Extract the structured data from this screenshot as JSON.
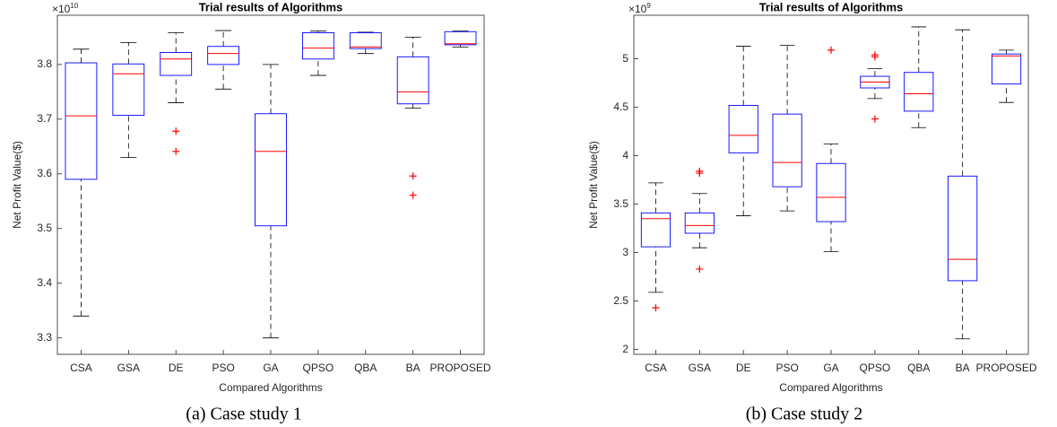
{
  "chart_data": [
    {
      "type": "box",
      "title": "Trial results of Algorithms",
      "x_label": "Compared Algorithms",
      "y_label": "Net Profit Value($)",
      "y_multiplier": "×10",
      "y_exponent": "10",
      "caption": "(a)   Case study 1",
      "categories": [
        "CSA",
        "GSA",
        "DE",
        "PSO",
        "GA",
        "QPSO",
        "QBA",
        "BA",
        "PROPOSED"
      ],
      "whisker_low": [
        3.34,
        3.63,
        3.73,
        3.755,
        3.3,
        3.78,
        3.82,
        3.72,
        3.832
      ],
      "q1": [
        3.59,
        3.707,
        3.78,
        3.8,
        3.505,
        3.81,
        3.829,
        3.728,
        3.836
      ],
      "median": [
        3.706,
        3.783,
        3.81,
        3.82,
        3.641,
        3.83,
        3.832,
        3.75,
        3.838
      ],
      "q3": [
        3.803,
        3.801,
        3.822,
        3.833,
        3.71,
        3.858,
        3.858,
        3.814,
        3.86
      ],
      "whisker_high": [
        3.828,
        3.84,
        3.858,
        3.862,
        3.8,
        3.861,
        3.859,
        3.85,
        3.861
      ],
      "outliers": [
        [],
        [],
        [
          3.678,
          3.641
        ],
        [],
        [],
        [],
        [],
        [
          3.596,
          3.561
        ],
        []
      ],
      "box_color": "#0000ff",
      "median_color": "#ff0000",
      "whisker_color": "#000000",
      "outlier_color": "#ff0000",
      "ylim": [
        3.27,
        3.89
      ],
      "yticks": [
        3.3,
        3.4,
        3.5,
        3.6,
        3.7,
        3.8
      ]
    },
    {
      "type": "box",
      "title": "Trial results of Algorithms",
      "x_label": "Compared Algorithms",
      "y_label": "Net Profit Value($)",
      "y_multiplier": "×10",
      "y_exponent": "9",
      "caption": "(b)  Case study 2",
      "categories": [
        "CSA",
        "GSA",
        "DE",
        "PSO",
        "GA",
        "QPSO",
        "QBA",
        "BA",
        "PROPOSED"
      ],
      "whisker_low": [
        2.59,
        3.05,
        3.38,
        3.43,
        3.01,
        4.59,
        4.29,
        2.11,
        4.55
      ],
      "q1": [
        3.06,
        3.2,
        4.03,
        3.68,
        3.32,
        4.7,
        4.46,
        2.71,
        4.74
      ],
      "median": [
        3.35,
        3.28,
        4.21,
        3.93,
        3.57,
        4.76,
        4.64,
        2.93,
        5.03
      ],
      "q3": [
        3.41,
        3.41,
        4.52,
        4.43,
        3.92,
        4.82,
        4.86,
        3.79,
        5.05
      ],
      "whisker_high": [
        3.72,
        3.61,
        5.13,
        5.14,
        4.12,
        4.9,
        5.33,
        5.3,
        5.09
      ],
      "outliers": [
        [
          2.43
        ],
        [
          3.84,
          3.82,
          2.83
        ],
        [],
        [],
        [
          5.09
        ],
        [
          5.04,
          5.02,
          4.38
        ],
        [],
        [],
        []
      ],
      "box_color": "#0000ff",
      "median_color": "#ff0000",
      "whisker_color": "#000000",
      "outlier_color": "#ff0000",
      "ylim": [
        1.95,
        5.45
      ],
      "yticks": [
        2,
        2.5,
        3,
        3.5,
        4,
        4.5,
        5
      ]
    }
  ]
}
